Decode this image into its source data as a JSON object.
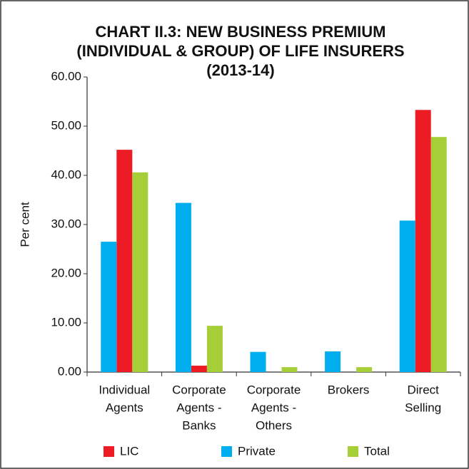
{
  "chart_data": {
    "type": "bar",
    "title": [
      "CHART II.3: NEW BUSINESS PREMIUM",
      "(INDIVIDUAL & GROUP) OF LIFE INSURERS",
      "(2013-14)"
    ],
    "y_label": "Per cent",
    "categories": [
      [
        "Individual",
        "Agents"
      ],
      [
        "Corporate",
        "Agents -",
        "Banks"
      ],
      [
        "Corporate",
        "Agents -",
        "Others"
      ],
      [
        "Brokers"
      ],
      [
        "Direct",
        "Selling"
      ]
    ],
    "series": [
      {
        "name": "LIC",
        "color": "#ed1c24",
        "values": [
          45.2,
          1.3,
          0,
          0,
          53.3
        ]
      },
      {
        "name": "Private",
        "color": "#00aeef",
        "values": [
          26.5,
          34.4,
          4.1,
          4.2,
          30.8
        ]
      },
      {
        "name": "Total",
        "color": "#a6ce39",
        "values": [
          40.6,
          9.4,
          1.0,
          1.0,
          47.8
        ]
      }
    ],
    "ylim": [
      0,
      60
    ],
    "yticks": [
      {
        "value": 0,
        "label": "0.00"
      },
      {
        "value": 10,
        "label": "10.00"
      },
      {
        "value": 20,
        "label": "20.00"
      },
      {
        "value": 30,
        "label": "30.00"
      },
      {
        "value": 40,
        "label": "40.00"
      },
      {
        "value": 50,
        "label": "50.00"
      },
      {
        "value": 60,
        "label": "60.00"
      }
    ],
    "grid": false
  }
}
